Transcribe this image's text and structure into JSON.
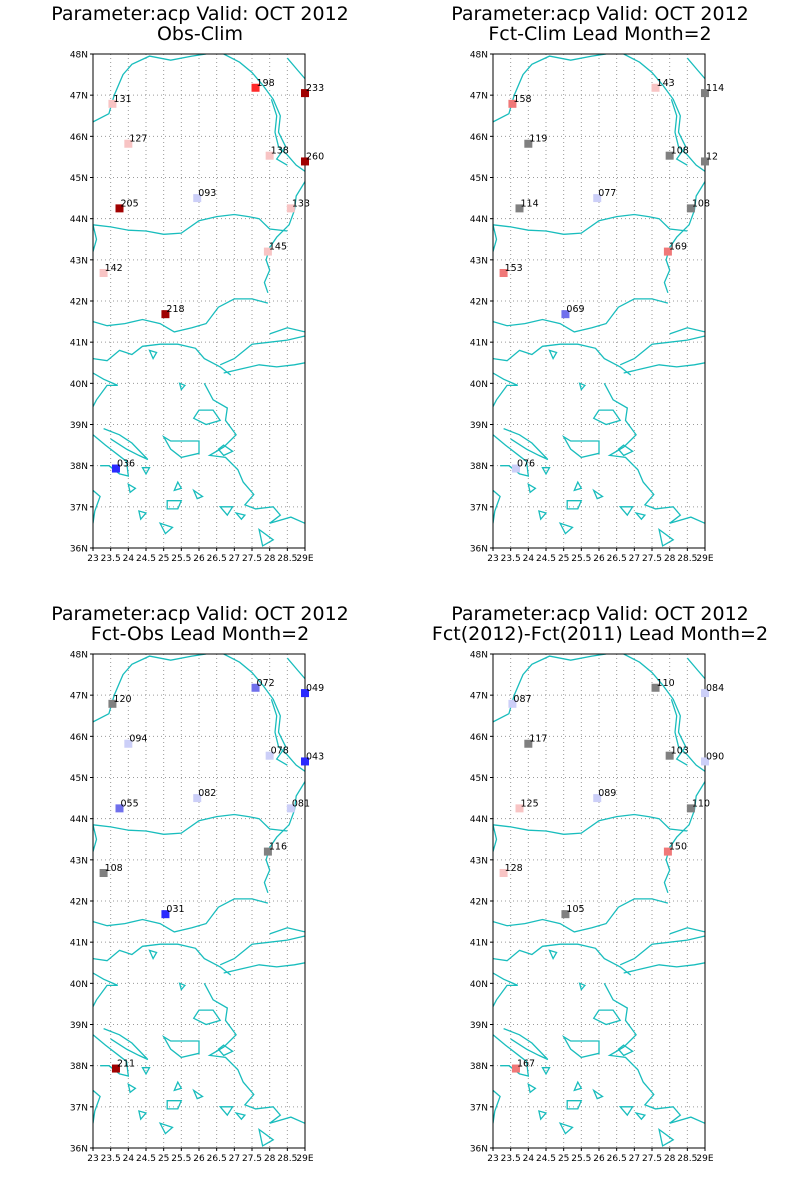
{
  "colors": {
    "coast": "#19bdbd",
    "grid": "#9a9a9a",
    "frame": "#000000",
    "values": {
      "dark_red": "#a00000",
      "red": "#ff2a2a",
      "salmon": "#f07878",
      "light_pink": "#f8c4c4",
      "gray": "#808080",
      "light_lavender": "#cccff8",
      "lavender": "#9ea4f2",
      "medium_blue": "#7070ec",
      "blue": "#2a2aff"
    }
  },
  "axes": {
    "lat_labels": [
      "48N",
      "47N",
      "46N",
      "45N",
      "44N",
      "43N",
      "42N",
      "41N",
      "40N",
      "39N",
      "38N",
      "37N",
      "36N"
    ],
    "lon_labels": [
      "23",
      "23.5",
      "24",
      "24.5",
      "25",
      "25.5",
      "26",
      "26.5",
      "27",
      "27.5",
      "28",
      "28.5",
      "29E"
    ],
    "lat_range": [
      36,
      48
    ],
    "lon_range": [
      23,
      29
    ],
    "grid": true
  },
  "panels": [
    {
      "title_line1": "Parameter:acp Valid: OCT 2012",
      "title_line2": "Obs-Clim",
      "stations": [
        {
          "lon": 23.55,
          "lat": 46.79,
          "label": "131",
          "color": "light_pink"
        },
        {
          "lon": 27.6,
          "lat": 47.18,
          "label": "198",
          "color": "red"
        },
        {
          "lon": 29.0,
          "lat": 47.05,
          "label": "233",
          "color": "dark_red"
        },
        {
          "lon": 24.0,
          "lat": 45.82,
          "label": "127",
          "color": "light_pink"
        },
        {
          "lon": 28.0,
          "lat": 45.53,
          "label": "138",
          "color": "light_pink"
        },
        {
          "lon": 29.0,
          "lat": 45.39,
          "label": "260",
          "color": "dark_red"
        },
        {
          "lon": 25.95,
          "lat": 44.5,
          "label": "093",
          "color": "light_lavender"
        },
        {
          "lon": 23.75,
          "lat": 44.25,
          "label": "205",
          "color": "dark_red"
        },
        {
          "lon": 28.6,
          "lat": 44.25,
          "label": "133",
          "color": "light_pink"
        },
        {
          "lon": 27.95,
          "lat": 43.2,
          "label": "145",
          "color": "light_pink"
        },
        {
          "lon": 23.3,
          "lat": 42.68,
          "label": "142",
          "color": "light_pink"
        },
        {
          "lon": 25.05,
          "lat": 41.68,
          "label": "218",
          "color": "dark_red"
        },
        {
          "lon": 23.65,
          "lat": 37.93,
          "label": "036",
          "color": "blue"
        }
      ]
    },
    {
      "title_line1": "Parameter:acp Valid: OCT 2012",
      "title_line2": "Fct-Clim Lead Month=2",
      "stations": [
        {
          "lon": 23.55,
          "lat": 46.79,
          "label": "158",
          "color": "salmon"
        },
        {
          "lon": 27.6,
          "lat": 47.18,
          "label": "143",
          "color": "light_pink"
        },
        {
          "lon": 29.0,
          "lat": 47.05,
          "label": "114",
          "color": "gray"
        },
        {
          "lon": 24.0,
          "lat": 45.82,
          "label": "119",
          "color": "gray"
        },
        {
          "lon": 28.0,
          "lat": 45.53,
          "label": "108",
          "color": "gray"
        },
        {
          "lon": 29.0,
          "lat": 45.39,
          "label": "12",
          "color": "gray"
        },
        {
          "lon": 25.95,
          "lat": 44.5,
          "label": "077",
          "color": "light_lavender"
        },
        {
          "lon": 23.75,
          "lat": 44.25,
          "label": "114",
          "color": "gray"
        },
        {
          "lon": 28.6,
          "lat": 44.25,
          "label": "108",
          "color": "gray"
        },
        {
          "lon": 27.95,
          "lat": 43.2,
          "label": "169",
          "color": "salmon"
        },
        {
          "lon": 23.3,
          "lat": 42.68,
          "label": "153",
          "color": "salmon"
        },
        {
          "lon": 25.05,
          "lat": 41.68,
          "label": "069",
          "color": "medium_blue"
        },
        {
          "lon": 23.65,
          "lat": 37.93,
          "label": "076",
          "color": "light_lavender"
        }
      ]
    },
    {
      "title_line1": "Parameter:acp Valid: OCT 2012",
      "title_line2": "Fct-Obs Lead Month=2",
      "stations": [
        {
          "lon": 23.55,
          "lat": 46.79,
          "label": "120",
          "color": "gray"
        },
        {
          "lon": 27.6,
          "lat": 47.18,
          "label": "072",
          "color": "medium_blue"
        },
        {
          "lon": 29.0,
          "lat": 47.05,
          "label": "049",
          "color": "blue"
        },
        {
          "lon": 24.0,
          "lat": 45.82,
          "label": "094",
          "color": "light_lavender"
        },
        {
          "lon": 28.0,
          "lat": 45.53,
          "label": "078",
          "color": "light_lavender"
        },
        {
          "lon": 29.0,
          "lat": 45.39,
          "label": "043",
          "color": "blue"
        },
        {
          "lon": 25.95,
          "lat": 44.5,
          "label": "082",
          "color": "light_lavender"
        },
        {
          "lon": 23.75,
          "lat": 44.25,
          "label": "055",
          "color": "medium_blue"
        },
        {
          "lon": 28.6,
          "lat": 44.25,
          "label": "081",
          "color": "light_lavender"
        },
        {
          "lon": 27.95,
          "lat": 43.2,
          "label": "116",
          "color": "gray"
        },
        {
          "lon": 23.3,
          "lat": 42.68,
          "label": "108",
          "color": "gray"
        },
        {
          "lon": 25.05,
          "lat": 41.68,
          "label": "031",
          "color": "blue"
        },
        {
          "lon": 23.65,
          "lat": 37.93,
          "label": "211",
          "color": "dark_red"
        }
      ]
    },
    {
      "title_line1": "Parameter:acp Valid: OCT 2012",
      "title_line2": "Fct(2012)-Fct(2011) Lead Month=2",
      "stations": [
        {
          "lon": 23.55,
          "lat": 46.79,
          "label": "087",
          "color": "light_lavender"
        },
        {
          "lon": 27.6,
          "lat": 47.18,
          "label": "110",
          "color": "gray"
        },
        {
          "lon": 29.0,
          "lat": 47.05,
          "label": "084",
          "color": "light_lavender"
        },
        {
          "lon": 24.0,
          "lat": 45.82,
          "label": "117",
          "color": "gray"
        },
        {
          "lon": 28.0,
          "lat": 45.53,
          "label": "103",
          "color": "gray"
        },
        {
          "lon": 29.0,
          "lat": 45.39,
          "label": "090",
          "color": "light_lavender"
        },
        {
          "lon": 25.95,
          "lat": 44.5,
          "label": "089",
          "color": "light_lavender"
        },
        {
          "lon": 23.75,
          "lat": 44.25,
          "label": "125",
          "color": "light_pink"
        },
        {
          "lon": 28.6,
          "lat": 44.25,
          "label": "110",
          "color": "gray"
        },
        {
          "lon": 27.95,
          "lat": 43.2,
          "label": "150",
          "color": "salmon"
        },
        {
          "lon": 23.3,
          "lat": 42.68,
          "label": "128",
          "color": "light_pink"
        },
        {
          "lon": 25.05,
          "lat": 41.68,
          "label": "105",
          "color": "gray"
        },
        {
          "lon": 23.65,
          "lat": 37.93,
          "label": "167",
          "color": "salmon"
        }
      ]
    }
  ]
}
